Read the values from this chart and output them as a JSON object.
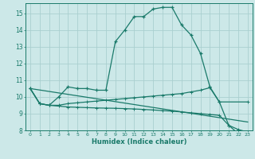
{
  "xlabel": "Humidex (Indice chaleur)",
  "bg_color": "#cce8e8",
  "grid_color": "#aacfcf",
  "line_color": "#1a7a6a",
  "xlim": [
    -0.5,
    23.5
  ],
  "ylim": [
    8,
    15.6
  ],
  "yticks": [
    8,
    9,
    10,
    11,
    12,
    13,
    14,
    15
  ],
  "xticks": [
    0,
    1,
    2,
    3,
    4,
    5,
    6,
    7,
    8,
    9,
    10,
    11,
    12,
    13,
    14,
    15,
    16,
    17,
    18,
    19,
    20,
    21,
    22,
    23
  ],
  "line1_x": [
    0,
    1,
    2,
    3,
    4,
    5,
    6,
    7,
    8,
    9,
    10,
    11,
    12,
    13,
    14,
    15,
    16,
    17,
    18,
    19,
    20,
    21,
    22,
    23
  ],
  "line1_y": [
    10.5,
    9.6,
    9.5,
    10.0,
    10.6,
    10.5,
    10.5,
    10.4,
    10.4,
    13.3,
    14.0,
    14.8,
    14.8,
    15.25,
    15.35,
    15.35,
    14.3,
    13.7,
    12.6,
    10.6,
    9.7,
    8.3,
    7.8,
    7.7
  ],
  "line2_x": [
    0,
    1,
    2,
    3,
    4,
    5,
    6,
    7,
    8,
    9,
    10,
    11,
    12,
    13,
    14,
    15,
    16,
    17,
    18,
    19,
    20,
    23
  ],
  "line2_y": [
    10.5,
    9.6,
    9.5,
    9.5,
    9.6,
    9.65,
    9.7,
    9.75,
    9.8,
    9.85,
    9.9,
    9.95,
    10.0,
    10.05,
    10.1,
    10.15,
    10.2,
    10.3,
    10.4,
    10.55,
    9.7,
    9.7
  ],
  "line3_x": [
    0,
    1,
    2,
    3,
    4,
    5,
    6,
    7,
    8,
    9,
    10,
    11,
    12,
    13,
    14,
    15,
    16,
    17,
    18,
    19,
    20,
    21,
    22,
    23
  ],
  "line3_y": [
    10.5,
    9.6,
    9.5,
    9.45,
    9.4,
    9.38,
    9.36,
    9.34,
    9.33,
    9.32,
    9.3,
    9.28,
    9.25,
    9.22,
    9.18,
    9.15,
    9.1,
    9.05,
    9.0,
    8.95,
    8.9,
    8.3,
    8.05,
    7.9
  ],
  "line4_x": [
    0,
    23
  ],
  "line4_y": [
    10.5,
    8.5
  ]
}
